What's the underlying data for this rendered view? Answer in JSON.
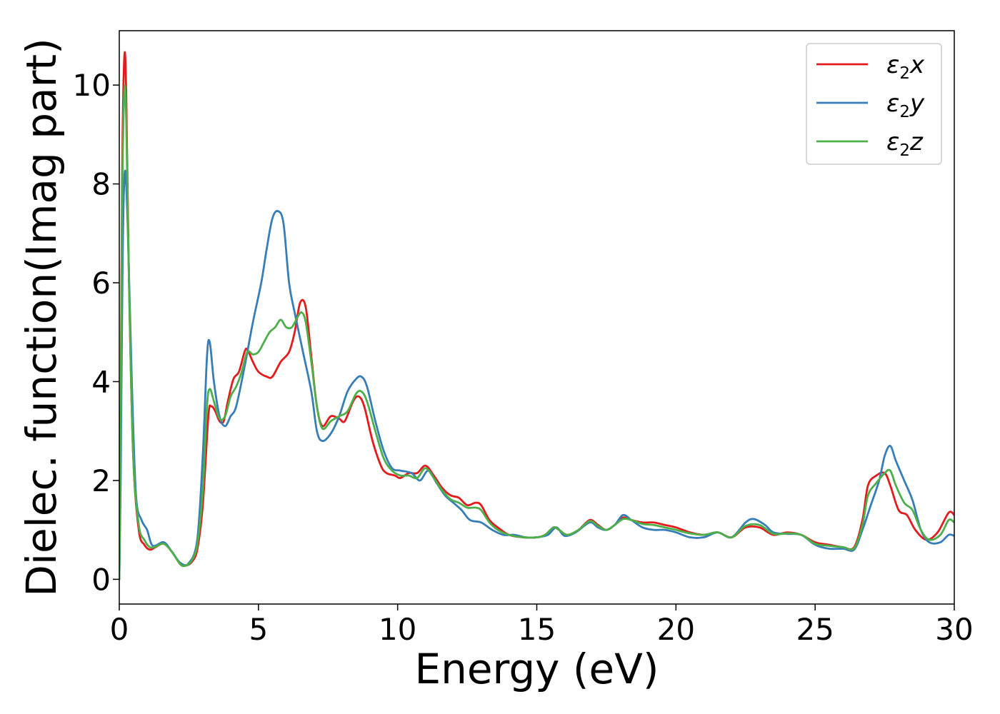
{
  "chart_data": {
    "type": "line",
    "title": "",
    "xlabel": "Energy (eV)",
    "ylabel": "Dielec. function(Imag part)",
    "xlim": [
      0,
      30
    ],
    "ylim": [
      -0.5,
      11.1
    ],
    "xticks": [
      0,
      5,
      10,
      15,
      20,
      25,
      30
    ],
    "yticks": [
      0,
      2,
      4,
      6,
      8,
      10
    ],
    "grid": false,
    "legend_position": "top-right",
    "series": [
      {
        "name": "ε2x",
        "legend_base": "ε",
        "legend_sub": "2",
        "legend_suffix": "x",
        "color": "#e41a1c",
        "points": [
          [
            0,
            0
          ],
          [
            0.05,
            3
          ],
          [
            0.1,
            8
          ],
          [
            0.18,
            10.55
          ],
          [
            0.25,
            9.8
          ],
          [
            0.35,
            6
          ],
          [
            0.5,
            2.5
          ],
          [
            0.7,
            1.0
          ],
          [
            0.9,
            0.7
          ],
          [
            1.1,
            0.6
          ],
          [
            1.3,
            0.65
          ],
          [
            1.6,
            0.72
          ],
          [
            1.9,
            0.55
          ],
          [
            2.2,
            0.3
          ],
          [
            2.4,
            0.28
          ],
          [
            2.6,
            0.35
          ],
          [
            2.8,
            0.6
          ],
          [
            3.0,
            1.5
          ],
          [
            3.2,
            3.3
          ],
          [
            3.3,
            3.5
          ],
          [
            3.45,
            3.4
          ],
          [
            3.6,
            3.2
          ],
          [
            3.75,
            3.2
          ],
          [
            3.9,
            3.6
          ],
          [
            4.1,
            4.05
          ],
          [
            4.3,
            4.2
          ],
          [
            4.5,
            4.6
          ],
          [
            4.6,
            4.65
          ],
          [
            4.8,
            4.4
          ],
          [
            5.0,
            4.2
          ],
          [
            5.3,
            4.1
          ],
          [
            5.5,
            4.1
          ],
          [
            5.8,
            4.4
          ],
          [
            6.1,
            4.6
          ],
          [
            6.3,
            5.0
          ],
          [
            6.5,
            5.6
          ],
          [
            6.7,
            5.5
          ],
          [
            6.9,
            4.5
          ],
          [
            7.1,
            3.5
          ],
          [
            7.3,
            3.1
          ],
          [
            7.6,
            3.3
          ],
          [
            7.9,
            3.25
          ],
          [
            8.1,
            3.2
          ],
          [
            8.4,
            3.6
          ],
          [
            8.6,
            3.7
          ],
          [
            8.8,
            3.5
          ],
          [
            9.1,
            2.8
          ],
          [
            9.4,
            2.3
          ],
          [
            9.6,
            2.15
          ],
          [
            9.9,
            2.1
          ],
          [
            10.1,
            2.05
          ],
          [
            10.4,
            2.15
          ],
          [
            10.7,
            2.15
          ],
          [
            11.0,
            2.3
          ],
          [
            11.3,
            2.1
          ],
          [
            11.6,
            1.85
          ],
          [
            11.9,
            1.7
          ],
          [
            12.2,
            1.65
          ],
          [
            12.5,
            1.5
          ],
          [
            12.8,
            1.55
          ],
          [
            13.0,
            1.5
          ],
          [
            13.3,
            1.2
          ],
          [
            13.6,
            1.05
          ],
          [
            14.0,
            0.9
          ],
          [
            14.5,
            0.85
          ],
          [
            15.0,
            0.85
          ],
          [
            15.3,
            0.9
          ],
          [
            15.6,
            1.05
          ],
          [
            15.8,
            1.0
          ],
          [
            16.1,
            0.9
          ],
          [
            16.5,
            1.0
          ],
          [
            16.9,
            1.2
          ],
          [
            17.2,
            1.1
          ],
          [
            17.5,
            1.0
          ],
          [
            17.8,
            1.1
          ],
          [
            18.1,
            1.25
          ],
          [
            18.4,
            1.2
          ],
          [
            18.8,
            1.15
          ],
          [
            19.2,
            1.15
          ],
          [
            19.6,
            1.1
          ],
          [
            20.0,
            1.05
          ],
          [
            20.5,
            0.95
          ],
          [
            21.0,
            0.9
          ],
          [
            21.5,
            0.95
          ],
          [
            22.0,
            0.85
          ],
          [
            22.5,
            1.05
          ],
          [
            23.0,
            1.05
          ],
          [
            23.5,
            0.9
          ],
          [
            24.0,
            0.95
          ],
          [
            24.5,
            0.9
          ],
          [
            25.0,
            0.75
          ],
          [
            25.5,
            0.7
          ],
          [
            26.0,
            0.65
          ],
          [
            26.4,
            0.65
          ],
          [
            26.7,
            1.2
          ],
          [
            26.9,
            1.9
          ],
          [
            27.2,
            2.1
          ],
          [
            27.5,
            2.15
          ],
          [
            27.7,
            1.9
          ],
          [
            28.0,
            1.4
          ],
          [
            28.3,
            1.3
          ],
          [
            28.6,
            1.0
          ],
          [
            29.0,
            0.8
          ],
          [
            29.4,
            0.95
          ],
          [
            29.8,
            1.35
          ],
          [
            30.0,
            1.3
          ]
        ]
      },
      {
        "name": "ε2y",
        "legend_base": "ε",
        "legend_sub": "2",
        "legend_suffix": "y",
        "color": "#377eb8",
        "points": [
          [
            0,
            0
          ],
          [
            0.05,
            2
          ],
          [
            0.12,
            6.5
          ],
          [
            0.2,
            8.25
          ],
          [
            0.3,
            7.2
          ],
          [
            0.45,
            4.0
          ],
          [
            0.6,
            1.7
          ],
          [
            0.8,
            1.2
          ],
          [
            1.0,
            1.0
          ],
          [
            1.2,
            0.68
          ],
          [
            1.6,
            0.75
          ],
          [
            1.9,
            0.55
          ],
          [
            2.2,
            0.33
          ],
          [
            2.5,
            0.33
          ],
          [
            2.8,
            0.8
          ],
          [
            3.0,
            2.5
          ],
          [
            3.15,
            4.5
          ],
          [
            3.25,
            4.8
          ],
          [
            3.4,
            4.0
          ],
          [
            3.6,
            3.3
          ],
          [
            3.8,
            3.1
          ],
          [
            4.0,
            3.3
          ],
          [
            4.2,
            3.5
          ],
          [
            4.5,
            4.3
          ],
          [
            4.8,
            5.2
          ],
          [
            5.1,
            6.0
          ],
          [
            5.3,
            6.7
          ],
          [
            5.5,
            7.3
          ],
          [
            5.7,
            7.45
          ],
          [
            5.9,
            7.2
          ],
          [
            6.1,
            6.0
          ],
          [
            6.3,
            5.4
          ],
          [
            6.6,
            4.6
          ],
          [
            6.9,
            3.8
          ],
          [
            7.1,
            3.0
          ],
          [
            7.3,
            2.8
          ],
          [
            7.6,
            2.95
          ],
          [
            7.9,
            3.3
          ],
          [
            8.2,
            3.8
          ],
          [
            8.5,
            4.05
          ],
          [
            8.7,
            4.1
          ],
          [
            8.9,
            3.9
          ],
          [
            9.2,
            3.2
          ],
          [
            9.5,
            2.6
          ],
          [
            9.8,
            2.25
          ],
          [
            10.1,
            2.2
          ],
          [
            10.5,
            2.15
          ],
          [
            10.8,
            2.0
          ],
          [
            11.1,
            2.2
          ],
          [
            11.4,
            1.95
          ],
          [
            11.7,
            1.7
          ],
          [
            12.0,
            1.55
          ],
          [
            12.3,
            1.4
          ],
          [
            12.6,
            1.2
          ],
          [
            13.0,
            1.15
          ],
          [
            13.4,
            1.0
          ],
          [
            13.8,
            0.9
          ],
          [
            14.2,
            0.9
          ],
          [
            14.6,
            0.85
          ],
          [
            15.0,
            0.85
          ],
          [
            15.4,
            0.9
          ],
          [
            15.7,
            1.05
          ],
          [
            16.0,
            0.88
          ],
          [
            16.4,
            0.95
          ],
          [
            16.9,
            1.15
          ],
          [
            17.2,
            1.05
          ],
          [
            17.5,
            1.0
          ],
          [
            17.8,
            1.1
          ],
          [
            18.1,
            1.3
          ],
          [
            18.4,
            1.2
          ],
          [
            18.8,
            1.05
          ],
          [
            19.2,
            1.0
          ],
          [
            19.6,
            1.0
          ],
          [
            20.0,
            0.95
          ],
          [
            20.5,
            0.85
          ],
          [
            21.0,
            0.85
          ],
          [
            21.5,
            0.95
          ],
          [
            22.0,
            0.85
          ],
          [
            22.5,
            1.15
          ],
          [
            22.8,
            1.22
          ],
          [
            23.2,
            1.1
          ],
          [
            23.5,
            0.95
          ],
          [
            24.0,
            0.92
          ],
          [
            24.5,
            0.9
          ],
          [
            25.0,
            0.7
          ],
          [
            25.5,
            0.62
          ],
          [
            26.0,
            0.62
          ],
          [
            26.4,
            0.6
          ],
          [
            26.7,
            1.0
          ],
          [
            27.0,
            1.5
          ],
          [
            27.3,
            2.0
          ],
          [
            27.5,
            2.5
          ],
          [
            27.7,
            2.7
          ],
          [
            27.9,
            2.4
          ],
          [
            28.2,
            2.0
          ],
          [
            28.5,
            1.6
          ],
          [
            28.8,
            1.0
          ],
          [
            29.1,
            0.75
          ],
          [
            29.5,
            0.75
          ],
          [
            29.8,
            0.9
          ],
          [
            30.0,
            0.88
          ]
        ]
      },
      {
        "name": "ε2z",
        "legend_base": "ε",
        "legend_sub": "2",
        "legend_suffix": "z",
        "color": "#4daf4a",
        "points": [
          [
            0,
            0
          ],
          [
            0.05,
            3
          ],
          [
            0.1,
            7.5
          ],
          [
            0.18,
            9.85
          ],
          [
            0.25,
            9.3
          ],
          [
            0.35,
            6.0
          ],
          [
            0.5,
            2.5
          ],
          [
            0.7,
            1.1
          ],
          [
            0.9,
            0.8
          ],
          [
            1.1,
            0.65
          ],
          [
            1.3,
            0.66
          ],
          [
            1.6,
            0.72
          ],
          [
            1.9,
            0.55
          ],
          [
            2.2,
            0.3
          ],
          [
            2.4,
            0.28
          ],
          [
            2.6,
            0.38
          ],
          [
            2.8,
            0.7
          ],
          [
            3.0,
            1.8
          ],
          [
            3.15,
            3.5
          ],
          [
            3.25,
            3.85
          ],
          [
            3.4,
            3.6
          ],
          [
            3.6,
            3.25
          ],
          [
            3.8,
            3.3
          ],
          [
            4.0,
            3.7
          ],
          [
            4.2,
            3.9
          ],
          [
            4.4,
            4.2
          ],
          [
            4.6,
            4.6
          ],
          [
            4.8,
            4.55
          ],
          [
            5.0,
            4.6
          ],
          [
            5.2,
            4.8
          ],
          [
            5.4,
            5.0
          ],
          [
            5.6,
            5.1
          ],
          [
            5.8,
            5.25
          ],
          [
            6.0,
            5.1
          ],
          [
            6.2,
            5.1
          ],
          [
            6.4,
            5.3
          ],
          [
            6.55,
            5.4
          ],
          [
            6.7,
            5.2
          ],
          [
            6.9,
            4.4
          ],
          [
            7.1,
            3.5
          ],
          [
            7.3,
            3.05
          ],
          [
            7.6,
            3.2
          ],
          [
            7.9,
            3.3
          ],
          [
            8.2,
            3.4
          ],
          [
            8.5,
            3.75
          ],
          [
            8.7,
            3.8
          ],
          [
            8.9,
            3.6
          ],
          [
            9.2,
            3.0
          ],
          [
            9.5,
            2.45
          ],
          [
            9.8,
            2.2
          ],
          [
            10.1,
            2.1
          ],
          [
            10.4,
            2.1
          ],
          [
            10.7,
            2.05
          ],
          [
            11.0,
            2.25
          ],
          [
            11.3,
            2.05
          ],
          [
            11.6,
            1.8
          ],
          [
            11.9,
            1.62
          ],
          [
            12.2,
            1.55
          ],
          [
            12.5,
            1.45
          ],
          [
            12.8,
            1.45
          ],
          [
            13.0,
            1.4
          ],
          [
            13.3,
            1.15
          ],
          [
            13.6,
            1.0
          ],
          [
            14.0,
            0.9
          ],
          [
            14.5,
            0.85
          ],
          [
            15.0,
            0.85
          ],
          [
            15.3,
            0.9
          ],
          [
            15.6,
            1.05
          ],
          [
            15.8,
            1.0
          ],
          [
            16.1,
            0.9
          ],
          [
            16.5,
            1.0
          ],
          [
            16.9,
            1.18
          ],
          [
            17.2,
            1.08
          ],
          [
            17.5,
            1.0
          ],
          [
            17.8,
            1.1
          ],
          [
            18.1,
            1.22
          ],
          [
            18.4,
            1.2
          ],
          [
            18.8,
            1.12
          ],
          [
            19.2,
            1.1
          ],
          [
            19.6,
            1.05
          ],
          [
            20.0,
            1.0
          ],
          [
            20.5,
            0.93
          ],
          [
            21.0,
            0.9
          ],
          [
            21.5,
            0.95
          ],
          [
            22.0,
            0.85
          ],
          [
            22.5,
            1.08
          ],
          [
            23.0,
            1.1
          ],
          [
            23.5,
            0.92
          ],
          [
            24.0,
            0.93
          ],
          [
            24.5,
            0.9
          ],
          [
            25.0,
            0.72
          ],
          [
            25.5,
            0.68
          ],
          [
            26.0,
            0.65
          ],
          [
            26.4,
            0.63
          ],
          [
            26.7,
            1.1
          ],
          [
            26.9,
            1.7
          ],
          [
            27.2,
            1.95
          ],
          [
            27.5,
            2.15
          ],
          [
            27.7,
            2.2
          ],
          [
            27.9,
            1.9
          ],
          [
            28.2,
            1.55
          ],
          [
            28.5,
            1.4
          ],
          [
            28.8,
            1.0
          ],
          [
            29.1,
            0.8
          ],
          [
            29.5,
            0.9
          ],
          [
            29.8,
            1.2
          ],
          [
            30.0,
            1.15
          ]
        ]
      }
    ]
  }
}
